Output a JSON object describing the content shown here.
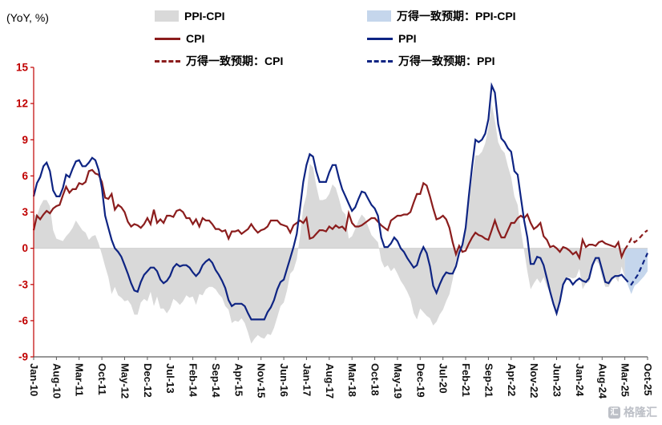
{
  "header": {
    "unit_label": "(YoY, %)"
  },
  "legend": {
    "items": [
      {
        "label": "PPI-CPI",
        "type": "area",
        "color": "#d9d9d9"
      },
      {
        "label": "万得一致预期：PPI-CPI",
        "type": "area",
        "color": "#c5d6ec"
      },
      {
        "label": "CPI",
        "type": "line",
        "color": "#8b1d1d"
      },
      {
        "label": "PPI",
        "type": "line",
        "color": "#0e2483"
      },
      {
        "label": "万得一致预期：CPI",
        "type": "dashed",
        "color": "#8b1d1d"
      },
      {
        "label": "万得一致预期：PPI",
        "type": "dashed",
        "color": "#0e2483"
      }
    ]
  },
  "watermark": {
    "logo_glyph": "汇",
    "text": "格隆汇"
  },
  "chart_data": {
    "type": "line",
    "title": "",
    "ylabel": "(YoY, %)",
    "ylim": [
      -9,
      15
    ],
    "yticks": [
      15,
      12,
      9,
      6,
      3,
      0,
      -3,
      -6,
      -9
    ],
    "x_range": {
      "start": "Jan-10",
      "end": "Oct-25",
      "frequency": "monthly"
    },
    "x_tick_every": 7,
    "x_tick_labels": [
      "Jan-10",
      "Aug-10",
      "Mar-11",
      "Oct-11",
      "May-12",
      "Dec-12",
      "Jul-13",
      "Feb-14",
      "Sep-14",
      "Apr-15",
      "Nov-15",
      "Jun-16",
      "Jan-17",
      "Aug-17",
      "Mar-18",
      "Oct-18",
      "May-19",
      "Dec-19",
      "Jul-20",
      "Feb-21",
      "Sep-21",
      "Apr-22",
      "Nov-22",
      "Jun-23",
      "Jan-24",
      "Aug-24",
      "Mar-25",
      "Oct-25"
    ],
    "forecast": {
      "start_index": 183,
      "source_label": "万得一致预期"
    },
    "shaded_area": {
      "name": "PPI-CPI",
      "definition": "PPI minus CPI, area from zero line",
      "actual_color": "#d9d9d9",
      "forecast_color": "#c5d6ec"
    },
    "axis": {
      "y_color": "#c00000",
      "y_label_color": "#c00000",
      "x_color": "#595959",
      "x_label_color": "#111111"
    },
    "series": [
      {
        "name": "CPI",
        "color": "#8b1d1d",
        "values": [
          1.5,
          2.7,
          2.4,
          2.8,
          3.1,
          2.9,
          3.3,
          3.5,
          3.6,
          4.4,
          5.1,
          4.6,
          4.9,
          4.9,
          5.4,
          5.3,
          5.5,
          6.4,
          6.5,
          6.2,
          6.1,
          5.5,
          4.2,
          4.1,
          4.5,
          3.2,
          3.6,
          3.4,
          3.0,
          2.2,
          1.8,
          2.0,
          1.9,
          1.7,
          2.0,
          2.5,
          2.0,
          3.2,
          2.1,
          2.4,
          2.1,
          2.7,
          2.7,
          2.6,
          3.1,
          3.2,
          3.0,
          2.5,
          2.5,
          2.0,
          2.4,
          1.8,
          2.5,
          2.3,
          2.3,
          2.0,
          1.6,
          1.6,
          1.4,
          1.5,
          0.8,
          1.4,
          1.4,
          1.5,
          1.2,
          1.4,
          1.6,
          2.0,
          1.6,
          1.3,
          1.5,
          1.6,
          1.8,
          2.3,
          2.3,
          2.3,
          2.0,
          1.9,
          1.8,
          1.3,
          1.9,
          2.1,
          2.3,
          2.1,
          2.5,
          0.8,
          0.9,
          1.2,
          1.5,
          1.5,
          1.4,
          1.8,
          1.6,
          1.9,
          1.7,
          1.8,
          1.5,
          2.9,
          2.1,
          1.8,
          1.8,
          1.9,
          2.1,
          2.3,
          2.5,
          2.5,
          2.2,
          1.9,
          1.7,
          1.5,
          2.3,
          2.5,
          2.7,
          2.7,
          2.8,
          2.8,
          3.0,
          3.8,
          4.5,
          4.5,
          5.4,
          5.2,
          4.3,
          3.3,
          2.4,
          2.5,
          2.7,
          2.4,
          1.7,
          0.5,
          -0.5,
          0.2,
          -0.3,
          -0.2,
          0.4,
          0.9,
          1.3,
          1.1,
          1.0,
          0.8,
          0.7,
          1.5,
          2.3,
          1.5,
          0.9,
          0.9,
          1.5,
          2.1,
          2.1,
          2.5,
          2.7,
          2.5,
          2.8,
          2.1,
          1.6,
          1.8,
          2.1,
          1.0,
          0.7,
          0.1,
          0.2,
          0.0,
          -0.3,
          0.1,
          0.0,
          -0.2,
          -0.5,
          -0.3,
          -0.8,
          0.7,
          0.1,
          0.3,
          0.3,
          0.2,
          0.5,
          0.6,
          0.4,
          0.3,
          0.2,
          0.1,
          0.5,
          -0.7,
          -0.1,
          0.3,
          0.8,
          0.5,
          0.7,
          1.0,
          1.3,
          1.5
        ]
      },
      {
        "name": "PPI",
        "color": "#0e2483",
        "values": [
          4.3,
          5.4,
          5.9,
          6.8,
          7.1,
          6.4,
          4.8,
          4.3,
          4.3,
          5.0,
          6.1,
          5.9,
          6.6,
          7.2,
          7.3,
          6.8,
          6.8,
          7.1,
          7.5,
          7.3,
          6.5,
          5.0,
          2.7,
          1.7,
          0.7,
          0.0,
          -0.3,
          -0.7,
          -1.4,
          -2.1,
          -2.9,
          -3.5,
          -3.6,
          -2.8,
          -2.2,
          -1.9,
          -1.6,
          -1.6,
          -1.9,
          -2.6,
          -2.9,
          -2.7,
          -2.3,
          -1.6,
          -1.3,
          -1.5,
          -1.4,
          -1.4,
          -1.6,
          -2.0,
          -2.3,
          -2.0,
          -1.4,
          -1.1,
          -0.9,
          -1.2,
          -1.8,
          -2.2,
          -2.7,
          -3.3,
          -4.3,
          -4.8,
          -4.6,
          -4.6,
          -4.6,
          -4.8,
          -5.4,
          -5.9,
          -5.9,
          -5.9,
          -5.9,
          -5.9,
          -5.3,
          -4.9,
          -4.3,
          -3.4,
          -2.8,
          -2.6,
          -1.7,
          -0.8,
          0.1,
          1.2,
          3.3,
          5.5,
          6.9,
          7.8,
          7.6,
          6.4,
          5.5,
          5.5,
          5.5,
          6.3,
          6.9,
          6.9,
          5.8,
          4.9,
          4.3,
          3.7,
          3.1,
          3.4,
          4.1,
          4.7,
          4.6,
          4.1,
          3.6,
          3.3,
          2.7,
          0.9,
          0.1,
          0.1,
          0.4,
          0.9,
          0.6,
          0.0,
          -0.3,
          -0.8,
          -1.2,
          -1.6,
          -1.4,
          -0.5,
          0.1,
          -0.4,
          -1.5,
          -3.1,
          -3.7,
          -3.0,
          -2.4,
          -2.0,
          -2.1,
          -2.1,
          -1.5,
          -0.4,
          0.3,
          1.7,
          4.4,
          6.8,
          9.0,
          8.8,
          9.0,
          9.5,
          10.7,
          13.5,
          12.9,
          10.3,
          9.1,
          8.8,
          8.3,
          8.0,
          6.4,
          6.1,
          4.2,
          2.3,
          0.9,
          -1.3,
          -1.3,
          -0.7,
          -0.8,
          -1.4,
          -2.5,
          -3.6,
          -4.6,
          -5.4,
          -4.4,
          -3.0,
          -2.5,
          -2.6,
          -3.0,
          -2.7,
          -2.5,
          -2.7,
          -2.8,
          -2.5,
          -1.4,
          -0.8,
          -0.8,
          -1.8,
          -2.8,
          -2.9,
          -2.5,
          -2.3,
          -2.3,
          -2.2,
          -2.5,
          -2.8,
          -3.0,
          -2.6,
          -2.2,
          -1.6,
          -1.0,
          -0.4
        ]
      }
    ]
  }
}
